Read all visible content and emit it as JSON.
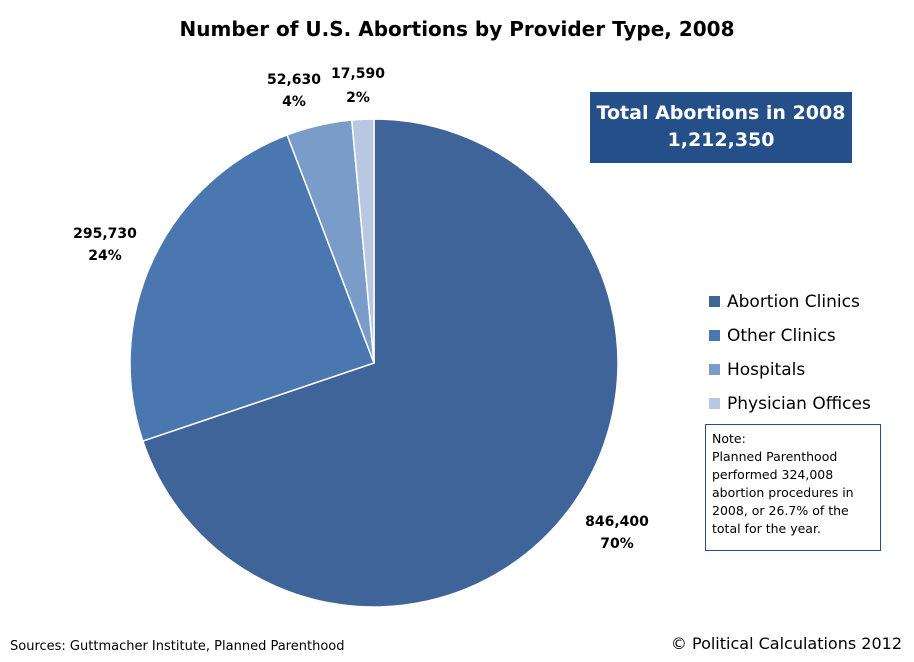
{
  "chart_data": {
    "type": "pie",
    "title": "Number of U.S. Abortions by Provider Type, 2008",
    "slices": [
      {
        "name": "Abortion Clinics",
        "value": 846400,
        "value_label": "846,400",
        "percent_label": "70%",
        "color": "#3E6499"
      },
      {
        "name": "Other Clinics",
        "value": 295730,
        "value_label": "295,730",
        "percent_label": "24%",
        "color": "#4A77B0"
      },
      {
        "name": "Hospitals",
        "value": 52630,
        "value_label": "52,630",
        "percent_label": "4%",
        "color": "#7A9CC8"
      },
      {
        "name": "Physician Offices",
        "value": 17590,
        "value_label": "17,590",
        "percent_label": "2%",
        "color": "#B9C8E2"
      }
    ],
    "legend": [
      "Abortion Clinics",
      "Other Clinics",
      "Hospitals",
      "Physician Offices"
    ],
    "legend_position": "right"
  },
  "total_box": {
    "line1": "Total Abortions in 2008",
    "line2": "1,212,350",
    "color": "#254F89"
  },
  "note": {
    "heading": "Note:",
    "text": "Planned Parenthood performed 324,008 abortion procedures in 2008, or 26.7% of the total for the year."
  },
  "sources": "Sources: Guttmacher Institute, Planned Parenthood",
  "copyright": "© Political Calculations 2012"
}
